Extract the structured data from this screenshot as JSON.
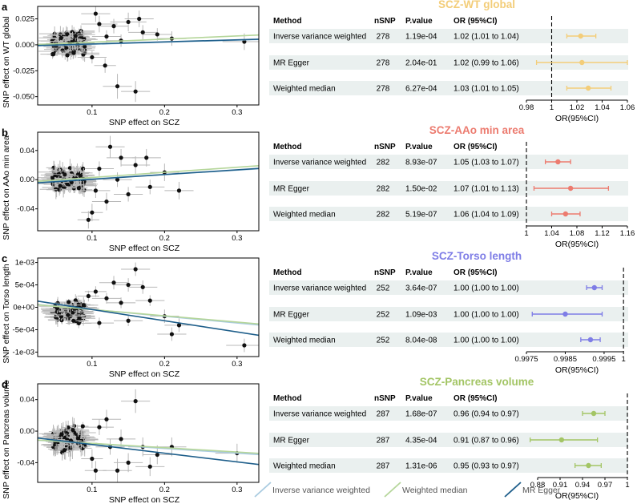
{
  "colors": {
    "ivw_line": "#a9cbe0",
    "wm_line": "#b5d69a",
    "egger_line": "#1f5f8b",
    "row_bg": "#eaf0ef"
  },
  "legend": [
    {
      "label": "Inverse variance weighted",
      "color": "#a9cbe0"
    },
    {
      "label": "Weighted median",
      "color": "#b5d69a"
    },
    {
      "label": "MR Egger",
      "color": "#1f5f8b"
    }
  ],
  "panels": [
    {
      "letter": "a",
      "scatter": {
        "type": "scatter",
        "xlabel": "SNP effect on SCZ",
        "ylabel": "SNP effect on WT global",
        "xlim": [
          0.025,
          0.33
        ],
        "ylim": [
          -0.058,
          0.037
        ],
        "xticks": [
          {
            "v": 0.1,
            "l": "0.1"
          },
          {
            "v": 0.2,
            "l": "0.2"
          },
          {
            "v": 0.3,
            "l": "0.3"
          }
        ],
        "yticks": [
          {
            "v": 0.025,
            "l": "0.025"
          },
          {
            "v": 0.0,
            "l": "0.000"
          },
          {
            "v": -0.025,
            "l": "-0.025"
          },
          {
            "v": -0.05,
            "l": "-0.050"
          }
        ],
        "lines": [
          {
            "method": "ivw",
            "intercept": -0.0015,
            "slope": 0.02
          },
          {
            "method": "wm",
            "intercept": -0.0005,
            "slope": 0.03
          },
          {
            "method": "egger",
            "intercept": -0.0012,
            "slope": 0.02
          }
        ],
        "cluster": {
          "xmin": 0.045,
          "xmax": 0.09,
          "ymin": -0.012,
          "ymax": 0.015,
          "n": 120,
          "xerr": 0.015,
          "yerr": 0.006
        },
        "points": [
          {
            "x": 0.11,
            "y": 0.02,
            "xe": 0.025,
            "ye": 0.008
          },
          {
            "x": 0.13,
            "y": 0.018,
            "xe": 0.02,
            "ye": 0.007
          },
          {
            "x": 0.15,
            "y": 0.022,
            "xe": 0.025,
            "ye": 0.009
          },
          {
            "x": 0.135,
            "y": -0.04,
            "xe": 0.02,
            "ye": 0.012
          },
          {
            "x": 0.16,
            "y": -0.045,
            "xe": 0.02,
            "ye": 0.01
          },
          {
            "x": 0.12,
            "y": 0.008,
            "xe": 0.02,
            "ye": 0.006
          },
          {
            "x": 0.14,
            "y": 0.004,
            "xe": 0.02,
            "ye": 0.006
          },
          {
            "x": 0.17,
            "y": 0.012,
            "xe": 0.02,
            "ye": 0.007
          },
          {
            "x": 0.19,
            "y": 0.01,
            "xe": 0.02,
            "ye": 0.006
          },
          {
            "x": 0.21,
            "y": 0.006,
            "xe": 0.02,
            "ye": 0.007
          },
          {
            "x": 0.1,
            "y": -0.012,
            "xe": 0.02,
            "ye": 0.006
          },
          {
            "x": 0.118,
            "y": -0.02,
            "xe": 0.015,
            "ye": 0.007
          },
          {
            "x": 0.165,
            "y": 0.025,
            "xe": 0.02,
            "ye": 0.008
          },
          {
            "x": 0.31,
            "y": 0.003,
            "xe": 0.03,
            "ye": 0.008
          },
          {
            "x": 0.105,
            "y": 0.03,
            "xe": 0.02,
            "ye": 0.008
          }
        ]
      },
      "forest": {
        "title": "SCZ-WT global",
        "color": "#f3cd79",
        "headers": {
          "method": "Method",
          "nsnp": "nSNP",
          "pvalue": "P.value",
          "or": "OR (95%CI)"
        },
        "xlabel": "OR(95%CI)",
        "xlim": [
          0.98,
          1.06
        ],
        "ref": 1.0,
        "xticks": [
          {
            "v": 0.98,
            "l": "0.98"
          },
          {
            "v": 1.0,
            "l": "1"
          },
          {
            "v": 1.02,
            "l": "1.02"
          },
          {
            "v": 1.04,
            "l": "1.04"
          },
          {
            "v": 1.06,
            "l": "1.06"
          }
        ],
        "rows": [
          {
            "method": "Inverse variance weighted",
            "nsnp": "278",
            "pvalue": "1.19e-04",
            "or_text": "1.02 (1.01 to 1.04)",
            "or": 1.023,
            "lo": 1.012,
            "hi": 1.035
          },
          {
            "method": "MR Egger",
            "nsnp": "278",
            "pvalue": "2.04e-01",
            "or_text": "1.02 (0.99 to 1.06)",
            "or": 1.024,
            "lo": 0.988,
            "hi": 1.06
          },
          {
            "method": "Weighted median",
            "nsnp": "278",
            "pvalue": "6.27e-04",
            "or_text": "1.03 (1.01 to 1.05)",
            "or": 1.029,
            "lo": 1.012,
            "hi": 1.047
          }
        ]
      }
    },
    {
      "letter": "b",
      "scatter": {
        "type": "scatter",
        "xlabel": "SNP effect on SCZ",
        "ylabel": "SNP effect on AAo min area",
        "xlim": [
          0.025,
          0.33
        ],
        "ylim": [
          -0.07,
          0.065
        ],
        "xticks": [
          {
            "v": 0.1,
            "l": "0.1"
          },
          {
            "v": 0.2,
            "l": "0.2"
          },
          {
            "v": 0.3,
            "l": "0.3"
          }
        ],
        "yticks": [
          {
            "v": 0.04,
            "l": "0.04"
          },
          {
            "v": 0.0,
            "l": "0.00"
          },
          {
            "v": -0.04,
            "l": "-0.04"
          }
        ],
        "lines": [
          {
            "method": "ivw",
            "intercept": -0.005,
            "slope": 0.06
          },
          {
            "method": "wm",
            "intercept": -0.004,
            "slope": 0.07
          },
          {
            "method": "egger",
            "intercept": -0.006,
            "slope": 0.065
          }
        ],
        "cluster": {
          "xmin": 0.045,
          "xmax": 0.09,
          "ymin": -0.02,
          "ymax": 0.02,
          "n": 120,
          "xerr": 0.015,
          "yerr": 0.01
        },
        "points": [
          {
            "x": 0.125,
            "y": 0.045,
            "xe": 0.02,
            "ye": 0.015
          },
          {
            "x": 0.14,
            "y": 0.03,
            "xe": 0.02,
            "ye": 0.012
          },
          {
            "x": 0.16,
            "y": 0.02,
            "xe": 0.02,
            "ye": 0.012
          },
          {
            "x": 0.1,
            "y": -0.045,
            "xe": 0.015,
            "ye": 0.012
          },
          {
            "x": 0.095,
            "y": -0.055,
            "xe": 0.015,
            "ye": 0.012
          },
          {
            "x": 0.12,
            "y": -0.03,
            "xe": 0.02,
            "ye": 0.012
          },
          {
            "x": 0.15,
            "y": -0.02,
            "xe": 0.02,
            "ye": 0.01
          },
          {
            "x": 0.175,
            "y": 0.03,
            "xe": 0.02,
            "ye": 0.012
          },
          {
            "x": 0.18,
            "y": -0.01,
            "xe": 0.02,
            "ye": 0.01
          },
          {
            "x": 0.2,
            "y": 0.01,
            "xe": 0.02,
            "ye": 0.012
          },
          {
            "x": 0.22,
            "y": -0.015,
            "xe": 0.02,
            "ye": 0.012
          },
          {
            "x": 0.135,
            "y": 0.0,
            "xe": 0.02,
            "ye": 0.01
          },
          {
            "x": 0.11,
            "y": 0.015,
            "xe": 0.02,
            "ye": 0.01
          },
          {
            "x": 0.105,
            "y": -0.015,
            "xe": 0.02,
            "ye": 0.01
          }
        ]
      },
      "forest": {
        "title": "SCZ-AAo min area",
        "color": "#ec7b6f",
        "headers": {
          "method": "Method",
          "nsnp": "nSNP",
          "pvalue": "P.value",
          "or": "OR (95%CI)"
        },
        "xlabel": "OR(95%CI)",
        "xlim": [
          1.0,
          1.16
        ],
        "ref": 1.0,
        "xticks": [
          {
            "v": 1.0,
            "l": "1"
          },
          {
            "v": 1.04,
            "l": "1.04"
          },
          {
            "v": 1.08,
            "l": "1.08"
          },
          {
            "v": 1.12,
            "l": "1.12"
          },
          {
            "v": 1.16,
            "l": "1.16"
          }
        ],
        "rows": [
          {
            "method": "Inverse variance weighted",
            "nsnp": "282",
            "pvalue": "8.93e-07",
            "or_text": "1.05 (1.03 to 1.07)",
            "or": 1.05,
            "lo": 1.03,
            "hi": 1.07
          },
          {
            "method": "MR Egger",
            "nsnp": "282",
            "pvalue": "1.50e-02",
            "or_text": "1.07 (1.01 to 1.13)",
            "or": 1.07,
            "lo": 1.012,
            "hi": 1.13
          },
          {
            "method": "Weighted median",
            "nsnp": "282",
            "pvalue": "5.19e-07",
            "or_text": "1.06 (1.04 to 1.09)",
            "or": 1.062,
            "lo": 1.04,
            "hi": 1.085
          }
        ]
      }
    },
    {
      "letter": "c",
      "scatter": {
        "type": "scatter",
        "xlabel": "SNP effect on SCZ",
        "ylabel": "SNP effect on Torso length",
        "xlim": [
          0.025,
          0.33
        ],
        "ylim": [
          -0.0011,
          0.0011
        ],
        "xticks": [
          {
            "v": 0.1,
            "l": "0.1"
          },
          {
            "v": 0.2,
            "l": "0.2"
          },
          {
            "v": 0.3,
            "l": "0.3"
          }
        ],
        "yticks": [
          {
            "v": 0.001,
            "l": "1e-03"
          },
          {
            "v": 0.0005,
            "l": "5e-04"
          },
          {
            "v": 0.0,
            "l": "0e+00"
          },
          {
            "v": -0.0005,
            "l": "-5e-04"
          },
          {
            "v": -0.001,
            "l": "-1e-03"
          }
        ],
        "lines": [
          {
            "method": "ivw",
            "intercept": 0.0001,
            "slope": -0.0015
          },
          {
            "method": "wm",
            "intercept": 9e-05,
            "slope": -0.0014
          },
          {
            "method": "egger",
            "intercept": 0.0002,
            "slope": -0.0025
          }
        ],
        "cluster": {
          "xmin": 0.045,
          "xmax": 0.09,
          "ymin": -0.0004,
          "ymax": 0.0002,
          "n": 120,
          "xerr": 0.015,
          "yerr": 0.00012
        },
        "points": [
          {
            "x": 0.16,
            "y": 0.00085,
            "xe": 0.02,
            "ye": 0.00015
          },
          {
            "x": 0.13,
            "y": 0.00055,
            "xe": 0.02,
            "ye": 0.00015
          },
          {
            "x": 0.15,
            "y": 0.0005,
            "xe": 0.02,
            "ye": 0.00015
          },
          {
            "x": 0.17,
            "y": 0.00045,
            "xe": 0.02,
            "ye": 0.00015
          },
          {
            "x": 0.105,
            "y": 0.00035,
            "xe": 0.015,
            "ye": 0.00012
          },
          {
            "x": 0.12,
            "y": 0.0002,
            "xe": 0.02,
            "ye": 0.00012
          },
          {
            "x": 0.14,
            "y": 0.0001,
            "xe": 0.02,
            "ye": 0.00012
          },
          {
            "x": 0.18,
            "y": 0.00015,
            "xe": 0.02,
            "ye": 0.00012
          },
          {
            "x": 0.2,
            "y": -0.0002,
            "xe": 0.02,
            "ye": 0.00015
          },
          {
            "x": 0.22,
            "y": -0.0004,
            "xe": 0.02,
            "ye": 0.00015
          },
          {
            "x": 0.21,
            "y": -0.0006,
            "xe": 0.02,
            "ye": 0.00015
          },
          {
            "x": 0.15,
            "y": -0.0003,
            "xe": 0.02,
            "ye": 0.00012
          },
          {
            "x": 0.31,
            "y": -0.00085,
            "xe": 0.025,
            "ye": 0.00015
          },
          {
            "x": 0.11,
            "y": -0.00035,
            "xe": 0.02,
            "ye": 0.00012
          },
          {
            "x": 0.095,
            "y": 0.00025,
            "xe": 0.015,
            "ye": 0.00012
          }
        ]
      },
      "forest": {
        "title": "SCZ-Torso length",
        "color": "#7e7de6",
        "headers": {
          "method": "Method",
          "nsnp": "nSNP",
          "pvalue": "P.value",
          "or": "OR (95%CI)"
        },
        "xlabel": "OR(95%CI)",
        "xlim": [
          0.9975,
          1.0001
        ],
        "ref": 1.0,
        "xticks": [
          {
            "v": 0.9975,
            "l": "0.9975"
          },
          {
            "v": 0.9985,
            "l": "0.9985"
          },
          {
            "v": 0.9995,
            "l": "0.9995"
          },
          {
            "v": 1.0,
            "l": "1"
          }
        ],
        "rows": [
          {
            "method": "Inverse variance weighted",
            "nsnp": "252",
            "pvalue": "3.64e-07",
            "or_text": "1.00 (1.00 to 1.00)",
            "or": 0.99925,
            "lo": 0.99905,
            "hi": 0.99945
          },
          {
            "method": "MR Egger",
            "nsnp": "252",
            "pvalue": "1.09e-03",
            "or_text": "1.00 (1.00 to 1.00)",
            "or": 0.9985,
            "lo": 0.99765,
            "hi": 0.99945
          },
          {
            "method": "Weighted median",
            "nsnp": "252",
            "pvalue": "8.04e-08",
            "or_text": "1.00 (1.00 to 1.00)",
            "or": 0.99915,
            "lo": 0.9989,
            "hi": 0.9994
          }
        ]
      }
    },
    {
      "letter": "d",
      "scatter": {
        "type": "scatter",
        "xlabel": "SNP effect on SCZ",
        "ylabel": "SNP effect on Pancreas volume",
        "xlim": [
          0.025,
          0.33
        ],
        "ylim": [
          -0.065,
          0.06
        ],
        "xticks": [
          {
            "v": 0.1,
            "l": "0.1"
          },
          {
            "v": 0.2,
            "l": "0.2"
          },
          {
            "v": 0.3,
            "l": "0.3"
          }
        ],
        "yticks": [
          {
            "v": 0.04,
            "l": "0.04"
          },
          {
            "v": 0.0,
            "l": "0.00"
          },
          {
            "v": -0.04,
            "l": "-0.04"
          }
        ],
        "lines": [
          {
            "method": "ivw",
            "intercept": -0.01,
            "slope": -0.06
          },
          {
            "method": "wm",
            "intercept": -0.01,
            "slope": -0.055
          },
          {
            "method": "egger",
            "intercept": -0.006,
            "slope": -0.11
          }
        ],
        "cluster": {
          "xmin": 0.045,
          "xmax": 0.09,
          "ymin": -0.03,
          "ymax": 0.01,
          "n": 120,
          "xerr": 0.015,
          "yerr": 0.01
        },
        "points": [
          {
            "x": 0.16,
            "y": 0.038,
            "xe": 0.02,
            "ye": 0.015
          },
          {
            "x": 0.12,
            "y": 0.015,
            "xe": 0.02,
            "ye": 0.012
          },
          {
            "x": 0.14,
            "y": -0.01,
            "xe": 0.02,
            "ye": 0.012
          },
          {
            "x": 0.135,
            "y": -0.05,
            "xe": 0.02,
            "ye": 0.015
          },
          {
            "x": 0.15,
            "y": -0.04,
            "xe": 0.02,
            "ye": 0.012
          },
          {
            "x": 0.17,
            "y": -0.02,
            "xe": 0.02,
            "ye": 0.012
          },
          {
            "x": 0.19,
            "y": -0.03,
            "xe": 0.02,
            "ye": 0.012
          },
          {
            "x": 0.21,
            "y": -0.02,
            "xe": 0.02,
            "ye": 0.012
          },
          {
            "x": 0.1,
            "y": -0.035,
            "xe": 0.015,
            "ye": 0.012
          },
          {
            "x": 0.11,
            "y": 0.005,
            "xe": 0.02,
            "ye": 0.01
          },
          {
            "x": 0.3,
            "y": -0.028,
            "xe": 0.03,
            "ye": 0.012
          },
          {
            "x": 0.125,
            "y": -0.02,
            "xe": 0.02,
            "ye": 0.01
          },
          {
            "x": 0.18,
            "y": -0.045,
            "xe": 0.02,
            "ye": 0.012
          },
          {
            "x": 0.105,
            "y": -0.05,
            "xe": 0.015,
            "ye": 0.012
          }
        ]
      },
      "forest": {
        "title": "SCZ-Pancreas volume",
        "color": "#a3c565",
        "headers": {
          "method": "Method",
          "nsnp": "nSNP",
          "pvalue": "P.value",
          "or": "OR (95%CI)"
        },
        "xlabel": "OR(95%CI)",
        "xlim": [
          0.865,
          1.0
        ],
        "ref": 1.0,
        "xticks": [
          {
            "v": 0.88,
            "l": "0.88"
          },
          {
            "v": 0.91,
            "l": "0.91"
          },
          {
            "v": 0.94,
            "l": "0.94"
          },
          {
            "v": 0.97,
            "l": "0.97"
          },
          {
            "v": 1.0,
            "l": "1"
          }
        ],
        "rows": [
          {
            "method": "Inverse variance weighted",
            "nsnp": "287",
            "pvalue": "1.68e-07",
            "or_text": "0.96 (0.94 to 0.97)",
            "or": 0.955,
            "lo": 0.94,
            "hi": 0.97
          },
          {
            "method": "MR Egger",
            "nsnp": "287",
            "pvalue": "4.35e-04",
            "or_text": "0.91 (0.87 to 0.96)",
            "or": 0.912,
            "lo": 0.87,
            "hi": 0.96
          },
          {
            "method": "Weighted median",
            "nsnp": "287",
            "pvalue": "1.31e-06",
            "or_text": "0.95 (0.93 to 0.97)",
            "or": 0.948,
            "lo": 0.93,
            "hi": 0.965
          }
        ]
      }
    }
  ]
}
